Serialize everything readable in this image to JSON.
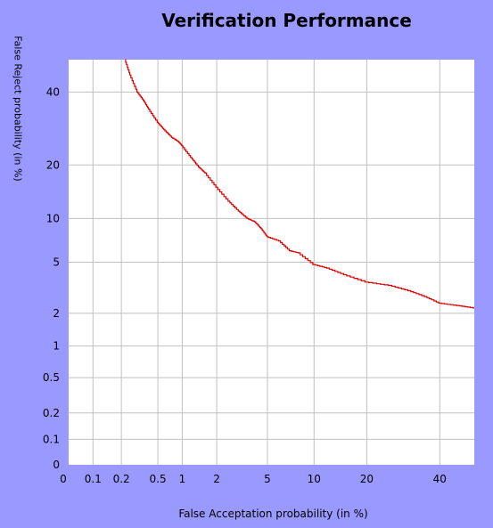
{
  "chart_data": {
    "type": "line",
    "title": "Verification Performance",
    "xlabel": "False Acceptation probability (in %)",
    "ylabel": "False Reject probability (in %)",
    "ylabel_display": "False Reject probability (in %)",
    "x_scale": "probit",
    "y_scale": "probit",
    "x_ticks": [
      0,
      0.1,
      0.2,
      0.5,
      1,
      2,
      5,
      10,
      20,
      40
    ],
    "x_tick_labels": [
      "0",
      "0.1",
      "0.2",
      "0.5",
      "1",
      "2",
      "5",
      "10",
      "20",
      "40"
    ],
    "y_ticks": [
      0,
      0.1,
      0.2,
      0.5,
      1,
      2,
      5,
      10,
      20,
      40
    ],
    "y_tick_labels": [
      "0",
      "0.1",
      "0.2",
      "0.5",
      "1",
      "2",
      "5",
      "10",
      "20",
      "40"
    ],
    "grid": true,
    "series": [
      {
        "color": "#dd0000",
        "x": [
          0.22,
          0.25,
          0.3,
          0.35,
          0.4,
          0.5,
          0.6,
          0.75,
          0.9,
          1.0,
          1.2,
          1.4,
          1.6,
          2.0,
          2.5,
          3.0,
          3.5,
          4.0,
          4.5,
          5.0,
          6.0,
          7.0,
          8.0,
          10.0,
          12.0,
          15.0,
          20.0,
          25.0,
          30.0,
          35.0,
          40.0,
          45.0,
          50.0
        ],
        "y": [
          50,
          45,
          40,
          37,
          34,
          30,
          28,
          26,
          25,
          24,
          21.5,
          19.5,
          18,
          15,
          12.5,
          11,
          10,
          9.5,
          8.5,
          7.5,
          7.0,
          6.0,
          5.8,
          4.8,
          4.5,
          4.0,
          3.5,
          3.3,
          3.0,
          2.7,
          2.4,
          2.3,
          2.2
        ]
      }
    ]
  },
  "colors": {
    "background": "#9999ff",
    "plot": "#ffffff",
    "grid": "#c0c0c0",
    "line": "#dd0000"
  }
}
